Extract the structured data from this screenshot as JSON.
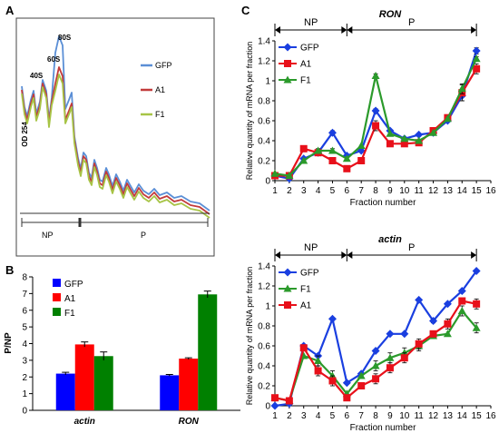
{
  "panels": {
    "A": {
      "letter": "A",
      "ylabel": "OD 254",
      "peaks": [
        "40S",
        "60S",
        "80S"
      ],
      "regions": [
        "NP",
        "P"
      ],
      "legend": [
        "GFP",
        "A1",
        "F1"
      ],
      "colors": {
        "GFP": "#5b8fd6",
        "A1": "#c23b3b",
        "F1": "#a7c446"
      }
    },
    "B": {
      "letter": "B"
    },
    "C": {
      "letter": "C"
    }
  },
  "chart_data": [
    {
      "type": "line",
      "panel": "A",
      "ylabel": "OD 254",
      "peak_labels": [
        "40S",
        "60S",
        "80S"
      ],
      "regions": [
        "NP",
        "P"
      ],
      "series": [
        {
          "name": "GFP",
          "color": "#5b8fd6"
        },
        {
          "name": "A1",
          "color": "#c23b3b"
        },
        {
          "name": "F1",
          "color": "#a7c446"
        }
      ]
    },
    {
      "type": "bar",
      "panel": "B",
      "ylabel": "P/NP",
      "categories": [
        "actin",
        "RON"
      ],
      "ylim": [
        0,
        8
      ],
      "yticks": [
        "0",
        "1",
        "2",
        "3",
        "4",
        "5",
        "6",
        "7",
        "8"
      ],
      "legend_position": "top-left",
      "series": [
        {
          "name": "GFP",
          "color": "#0000ff",
          "values": [
            2.2,
            2.1
          ],
          "errors": [
            0.08,
            0.05
          ]
        },
        {
          "name": "A1",
          "color": "#ff0000",
          "values": [
            3.95,
            3.1
          ],
          "errors": [
            0.15,
            0.05
          ]
        },
        {
          "name": "F1",
          "color": "#008000",
          "values": [
            3.25,
            6.95
          ],
          "errors": [
            0.25,
            0.2
          ]
        }
      ]
    },
    {
      "type": "line",
      "panel": "C",
      "title": "RON",
      "xlabel": "Fraction number",
      "ylabel": "Relative quantity of mRNA per fraction",
      "x": [
        1,
        2,
        3,
        4,
        5,
        6,
        7,
        8,
        9,
        10,
        11,
        12,
        13,
        14,
        15
      ],
      "xticks": [
        "1",
        "2",
        "3",
        "4",
        "5",
        "6",
        "7",
        "8",
        "9",
        "10",
        "11",
        "12",
        "13",
        "14",
        "15",
        "16"
      ],
      "ylim": [
        0,
        1.4
      ],
      "yticks": [
        "0",
        "0.2",
        "0.4",
        "0.6",
        "0.8",
        "1",
        "1.2",
        "1.4"
      ],
      "regions": [
        {
          "label": "NP",
          "from": 1,
          "to": 6
        },
        {
          "label": "P",
          "from": 6,
          "to": 15
        }
      ],
      "legend_position": "top-left",
      "series": [
        {
          "name": "GFP",
          "color": "#1a3fe0",
          "marker": "diamond",
          "values": [
            0.05,
            0.02,
            0.22,
            0.28,
            0.48,
            0.25,
            0.3,
            0.7,
            0.5,
            0.42,
            0.46,
            0.48,
            0.6,
            0.85,
            1.3
          ],
          "errors": [
            0,
            0,
            0,
            0,
            0.02,
            0,
            0,
            0.02,
            0,
            0,
            0,
            0,
            0,
            0.05,
            0.03
          ]
        },
        {
          "name": "A1",
          "color": "#e8101a",
          "marker": "square",
          "values": [
            0.05,
            0.05,
            0.32,
            0.28,
            0.2,
            0.12,
            0.2,
            0.55,
            0.37,
            0.37,
            0.38,
            0.5,
            0.63,
            0.88,
            1.12
          ],
          "errors": [
            0,
            0,
            0,
            0.02,
            0.02,
            0,
            0,
            0.05,
            0,
            0,
            0,
            0,
            0,
            0.08,
            0.05
          ]
        },
        {
          "name": "F1",
          "color": "#2b9a2b",
          "marker": "triangle",
          "values": [
            0.07,
            0.05,
            0.2,
            0.3,
            0.3,
            0.22,
            0.35,
            1.05,
            0.47,
            0.42,
            0.4,
            0.48,
            0.62,
            0.92,
            1.22
          ],
          "errors": [
            0,
            0,
            0,
            0.02,
            0.02,
            0,
            0,
            0.02,
            0,
            0,
            0,
            0,
            0,
            0.05,
            0.02
          ]
        }
      ]
    },
    {
      "type": "line",
      "panel": "C",
      "title": "actin",
      "xlabel": "Fraction number",
      "ylabel": "Relative quantity of mRNA per fraction",
      "x": [
        1,
        2,
        3,
        4,
        5,
        6,
        7,
        8,
        9,
        10,
        11,
        12,
        13,
        14,
        15
      ],
      "xticks": [
        "1",
        "2",
        "3",
        "4",
        "5",
        "6",
        "7",
        "8",
        "9",
        "10",
        "11",
        "12",
        "13",
        "14",
        "15",
        "16"
      ],
      "ylim": [
        0,
        1.4
      ],
      "yticks": [
        "0",
        "0.2",
        "0.4",
        "0.6",
        "0.8",
        "1",
        "1.2",
        "1.4"
      ],
      "regions": [
        {
          "label": "NP",
          "from": 1,
          "to": 6
        },
        {
          "label": "P",
          "from": 6,
          "to": 15
        }
      ],
      "legend_position": "top-left",
      "series": [
        {
          "name": "GFP",
          "color": "#1a3fe0",
          "marker": "diamond",
          "values": [
            0.0,
            0.02,
            0.6,
            0.5,
            0.87,
            0.23,
            0.32,
            0.55,
            0.72,
            0.72,
            1.06,
            0.85,
            1.02,
            1.15,
            1.35
          ],
          "errors": [
            0,
            0,
            0,
            0,
            0,
            0,
            0,
            0,
            0,
            0,
            0,
            0.02,
            0,
            0,
            0
          ]
        },
        {
          "name": "F1",
          "color": "#2b9a2b",
          "marker": "triangle",
          "values": [
            0.08,
            0.05,
            0.5,
            0.45,
            0.3,
            0.12,
            0.3,
            0.4,
            0.48,
            0.53,
            0.6,
            0.7,
            0.72,
            0.95,
            0.78
          ],
          "errors": [
            0,
            0,
            0,
            0.05,
            0.05,
            0,
            0,
            0.05,
            0.05,
            0.05,
            0.05,
            0,
            0,
            0.05,
            0.05
          ]
        },
        {
          "name": "A1",
          "color": "#e8101a",
          "marker": "square",
          "values": [
            0.08,
            0.05,
            0.58,
            0.35,
            0.25,
            0.08,
            0.2,
            0.27,
            0.38,
            0.48,
            0.62,
            0.72,
            0.82,
            1.05,
            1.02
          ],
          "errors": [
            0,
            0,
            0,
            0.05,
            0.05,
            0,
            0,
            0.05,
            0.05,
            0.05,
            0.05,
            0,
            0.05,
            0,
            0.05
          ]
        }
      ]
    }
  ]
}
